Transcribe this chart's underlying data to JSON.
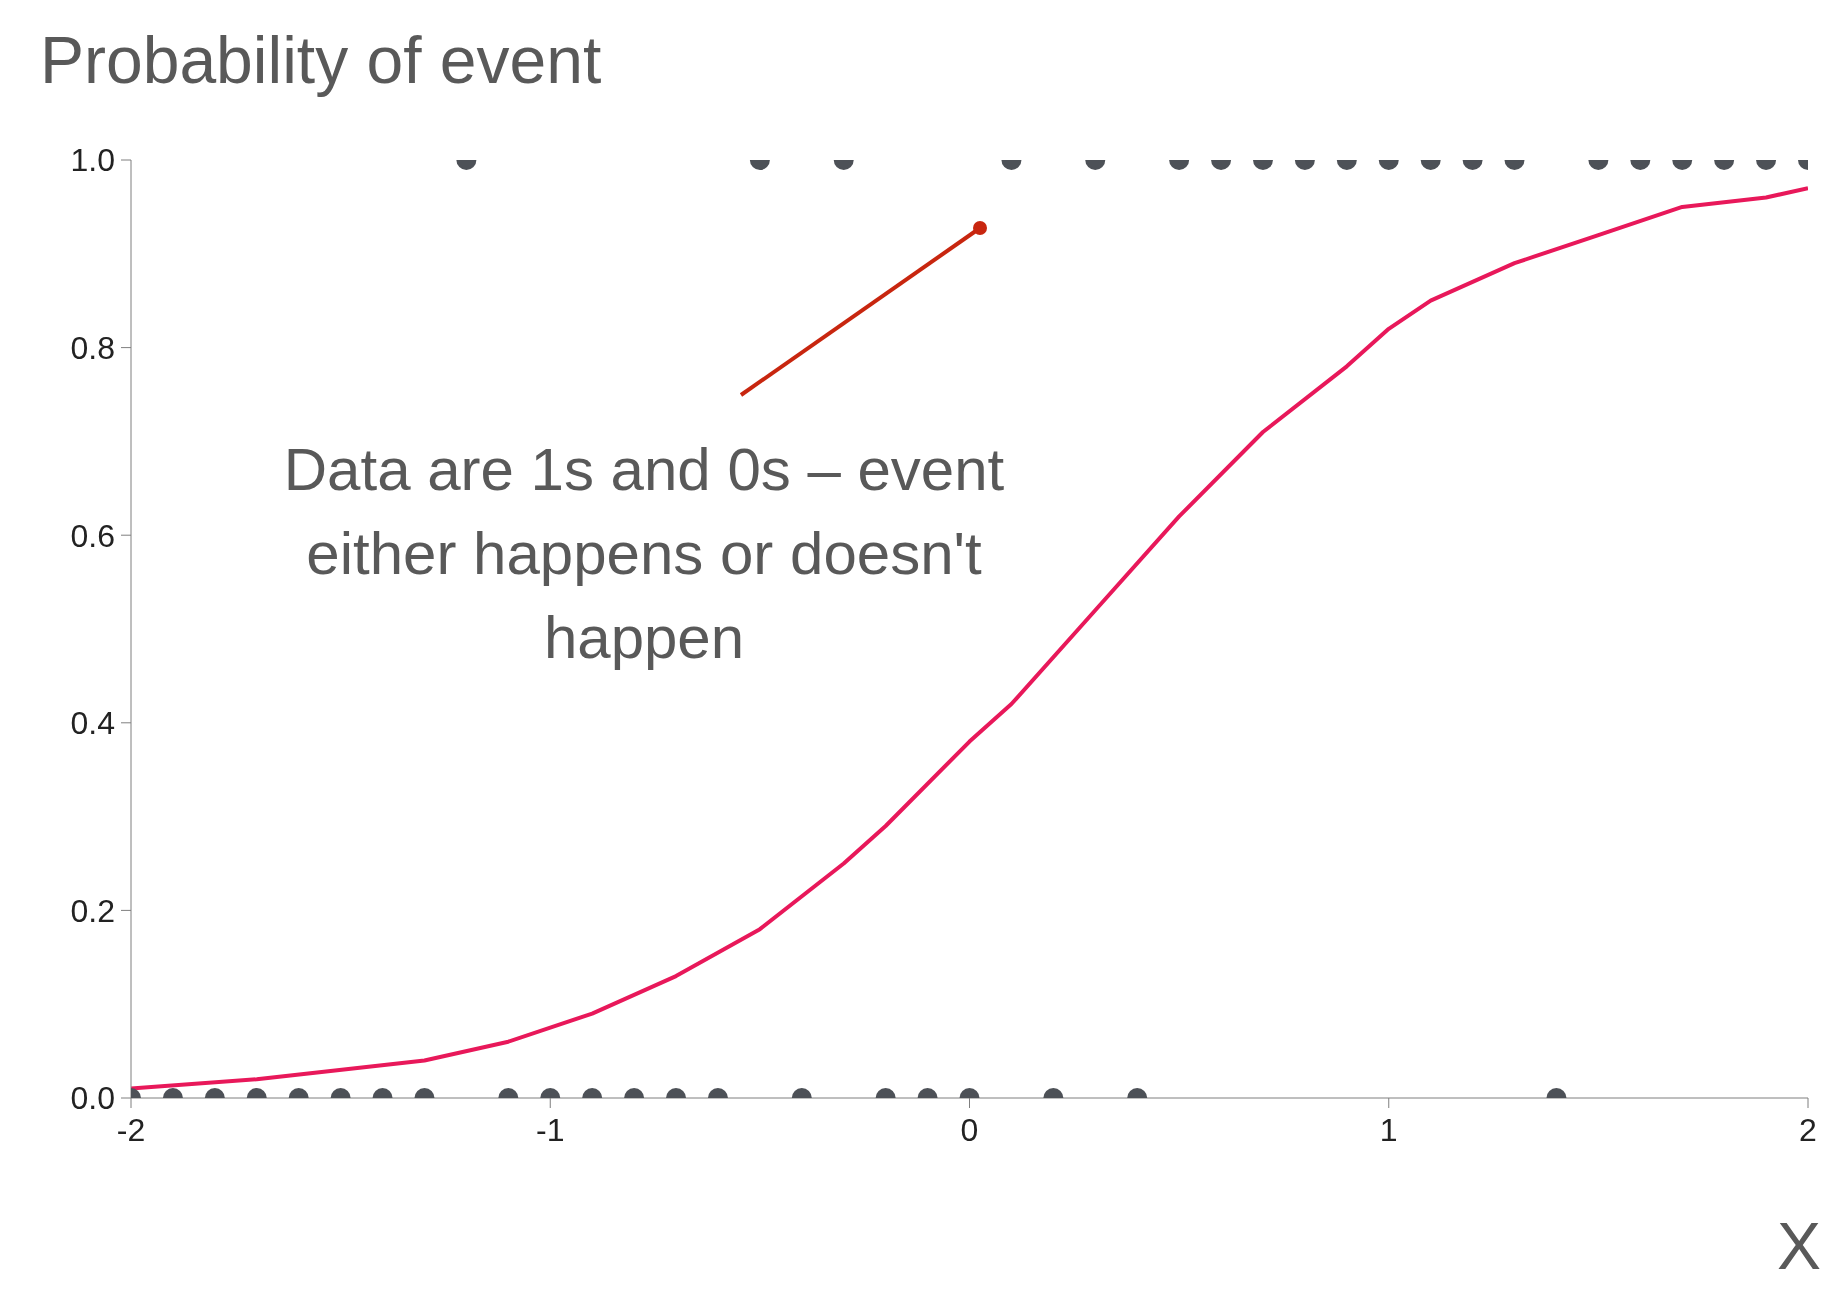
{
  "chart_data": {
    "type": "scatter",
    "ylabel": "Probability of event",
    "xlabel": "X",
    "annotations": [
      "Data are 1s and 0s – event either happens or doesn't happen"
    ],
    "xlim": [
      -2,
      2
    ],
    "xticks": [
      -2,
      -1,
      0,
      1,
      2
    ],
    "ylim": [
      0,
      1
    ],
    "yticks": [
      {
        "value": 0,
        "label": "0.0"
      },
      {
        "value": 0.2,
        "label": "0.2"
      },
      {
        "value": 0.4,
        "label": "0.4"
      },
      {
        "value": 0.6,
        "label": "0.6"
      },
      {
        "value": 0.8,
        "label": "0.8"
      },
      {
        "value": 1,
        "label": "1.0"
      }
    ],
    "grid": false,
    "series": [
      {
        "color": "#4d5157",
        "marker": "circle",
        "x": [
          -2,
          -1.9,
          -1.8,
          -1.7,
          -1.6,
          -1.5,
          -1.4,
          -1.3,
          -1.2,
          -1.1,
          -1,
          -0.9,
          -0.8,
          -0.7,
          -0.6,
          -0.5,
          -0.4,
          -0.3,
          -0.2,
          -0.1,
          0,
          0.1,
          0.2,
          0.3,
          0.4,
          0.5,
          0.6,
          0.7,
          0.8,
          0.9,
          1,
          1.1,
          1.2,
          1.3,
          1.4,
          1.5,
          1.6,
          1.7,
          1.8,
          1.9,
          2
        ],
        "values": [
          0,
          0,
          0,
          0,
          0,
          0,
          0,
          0,
          1,
          0,
          0,
          0,
          0,
          0,
          0,
          1,
          0,
          1,
          0,
          0,
          0,
          1,
          0,
          1,
          0,
          1,
          1,
          1,
          1,
          1,
          1,
          1,
          1,
          1,
          0,
          1,
          1,
          1,
          1,
          1,
          1
        ]
      },
      {
        "type": "line",
        "color": "#e8185a",
        "marker": "none",
        "line_style": "solid",
        "x": [
          -2,
          -1.7,
          -1.3,
          -1.1,
          -0.9,
          -0.7,
          -0.5,
          -0.3,
          -0.2,
          0,
          0.1,
          0.3,
          0.5,
          0.7,
          0.9,
          1,
          1.1,
          1.3,
          1.5,
          1.7,
          1.9,
          2
        ],
        "values": [
          0.01,
          0.02,
          0.04,
          0.06,
          0.09,
          0.13,
          0.18,
          0.25,
          0.29,
          0.38,
          0.42,
          0.52,
          0.62,
          0.71,
          0.78,
          0.82,
          0.85,
          0.89,
          0.92,
          0.95,
          0.96,
          0.97
        ]
      }
    ]
  }
}
